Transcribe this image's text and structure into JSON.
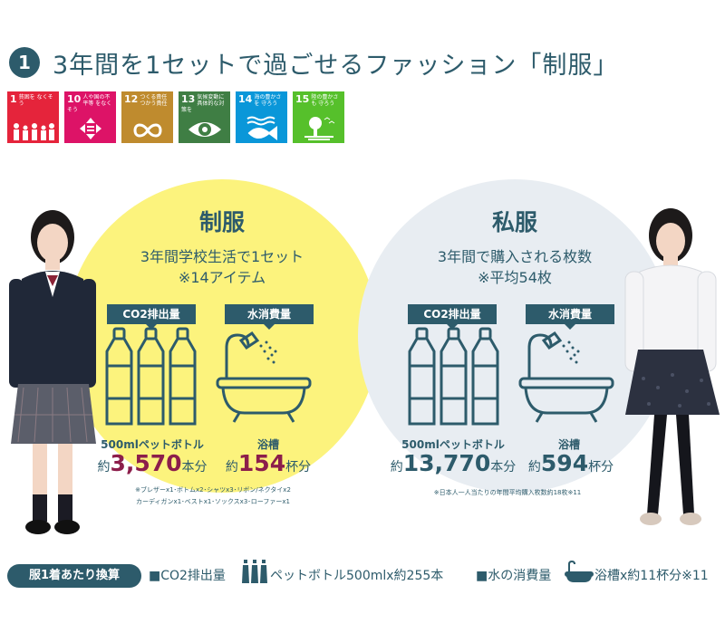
{
  "header": {
    "number": "1",
    "title": "3年間を1セットで過ごせるファッション「制服」"
  },
  "sdgs": [
    {
      "num": "1",
      "text": "貧困を なくそう",
      "color": "#e5243b",
      "icon": "people-icon"
    },
    {
      "num": "10",
      "text": "人や国の不平等 をなくそう",
      "color": "#dd1367",
      "icon": "equality-icon"
    },
    {
      "num": "12",
      "text": "つくる責任 つかう責任",
      "color": "#bf8b2e",
      "icon": "infinity-icon"
    },
    {
      "num": "13",
      "text": "気候変動に 具体的な対策を",
      "color": "#3f7e44",
      "icon": "eye-globe-icon"
    },
    {
      "num": "14",
      "text": "海の豊かさを 守ろう",
      "color": "#0a97d9",
      "icon": "fish-icon"
    },
    {
      "num": "15",
      "text": "陸の豊かさも 守ろう",
      "color": "#56c02b",
      "icon": "tree-icon"
    }
  ],
  "uniform": {
    "heading": "制服",
    "line1": "3年間学校生活で1セット",
    "line2": "※14アイテム",
    "co2_tag": "CO2排出量",
    "water_tag": "水消費量",
    "bottle_label": "500mlペットボトル",
    "bottle_prefix": "約",
    "bottle_value": "3,570",
    "bottle_suffix": "本分",
    "bath_label": "浴槽",
    "bath_prefix": "約",
    "bath_value": "154",
    "bath_suffix": "杯分",
    "note1": "※ブレザーx1･ボトムx2･シャツx3･リボン/ネクタイx2",
    "note2": "カーディガンx1･ベストx1･ソックスx3･ローファーx1"
  },
  "casual": {
    "heading": "私服",
    "line1": "3年間で購入される枚数",
    "line2": "※平均54枚",
    "co2_tag": "CO2排出量",
    "water_tag": "水消費量",
    "bottle_label": "500mlペットボトル",
    "bottle_prefix": "約",
    "bottle_value": "13,770",
    "bottle_suffix": "本分",
    "bath_label": "浴槽",
    "bath_prefix": "約",
    "bath_value": "594",
    "bath_suffix": "杯分",
    "note1": "※日本人一人当たりの年間平均購入枚数約18枚※11"
  },
  "footer": {
    "pill": "服1着あたり換算",
    "co2": "■CO2排出量",
    "co2_value": "ペットボトル500mlx約255本",
    "water": "■水の消費量",
    "water_value": "浴槽x約11杯分※11"
  },
  "colors": {
    "primary": "#2d5b6b",
    "uniform_circle": "#fcf37d",
    "casual_circle": "#e8edf2",
    "uniform_value": "#8c1e4b"
  }
}
